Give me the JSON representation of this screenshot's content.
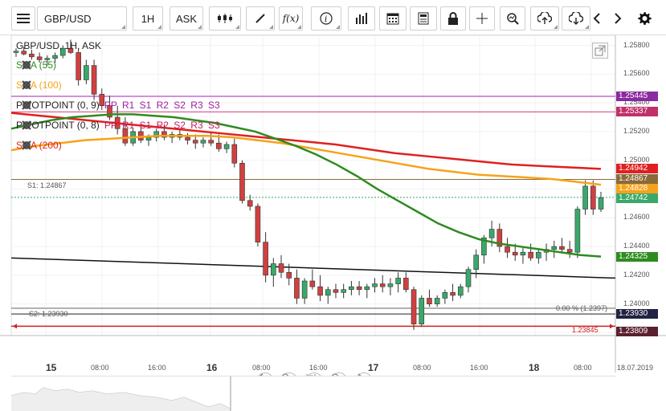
{
  "toolbar": {
    "menu_icon": "hamburger-menu-icon",
    "symbol": "GBP/USD",
    "timeframe": "1H",
    "price_type": "ASK",
    "buttons": [
      "candles-icon",
      "draw-line-icon",
      "fx-icon",
      "info-icon",
      "volume-bars-icon",
      "calendar-icon",
      "news-icon",
      "lock-icon",
      "crosshair-icon",
      "zoom-icon",
      "upload-icon",
      "download-icon",
      "prev-arrow-icon",
      "next-arrow-icon",
      "gear-icon"
    ],
    "fx_label": "f(x)"
  },
  "chart_header": {
    "title": "GBP/USD, 1H, ASK"
  },
  "legend": [
    {
      "label": "SMA (55)",
      "color": "#2e8b20"
    },
    {
      "label": "SMA (100)",
      "color": "#f5a31a"
    },
    {
      "label": "PIVOTPOINT (0, 9)",
      "color": "#222222",
      "levels": "PP R1 S1 R2 S2 R3 S3",
      "level_color": "#a020a0"
    },
    {
      "label": "PIVOTPOINT (0, 8)",
      "color": "#222222",
      "levels": "PP R1 S1 R2 S2 R3 S3",
      "level_color": "#c02060"
    },
    {
      "label": "SMA (200)",
      "color": "#e02020"
    }
  ],
  "price_axis": {
    "ticks": [
      "1.25800",
      "1.25600",
      "1.25400",
      "1.25200",
      "1.25000",
      "1.24800",
      "1.24600",
      "1.24400",
      "1.24200",
      "1.24000",
      "1.23800"
    ],
    "top_tick": "1.25800"
  },
  "price_tags": [
    {
      "value": "1.25445",
      "color": "#8a2aa0"
    },
    {
      "value": "1.25337",
      "color": "#c0306a"
    },
    {
      "value": "1.24942",
      "color": "#e02020"
    },
    {
      "value": "1.24867",
      "color": "#8a6a3a"
    },
    {
      "value": "1.24828",
      "color": "#f5a31a"
    },
    {
      "value": "1.24742",
      "color": "#3aa86a"
    },
    {
      "value": "1.24325",
      "color": "#2e8b20"
    },
    {
      "value": "1.23930",
      "color": "#222244"
    },
    {
      "value": "1.23809",
      "color": "#5a2030"
    }
  ],
  "annotations": {
    "s1_label": "S1: 1.24867",
    "s2_label": "S2: 1.23930",
    "fib_label": "0.00 % (1.2397)",
    "red_line_label": "1.23845"
  },
  "time_axis": {
    "days": [
      {
        "label": "15"
      },
      {
        "label": "16"
      },
      {
        "label": "17"
      },
      {
        "label": "18"
      }
    ],
    "times": [
      "08:00",
      "16:00",
      "08:00",
      "16:00",
      "08:00",
      "16:00",
      "08:00"
    ],
    "date_label": "18.07.2019"
  },
  "nav_buttons": [
    "scroll-left-icon",
    "zoom-out-icon",
    "fit-icon",
    "zoom-in-icon",
    "scroll-right-icon"
  ],
  "colors": {
    "bull": "#3aa86a",
    "bear": "#d04040",
    "sma55": "#2e8b20",
    "sma100": "#f5a31a",
    "sma200": "#e02020"
  },
  "chart_data": {
    "type": "candlestick",
    "symbol": "GBP/USD",
    "timeframe": "1H",
    "ylim": [
      1.2378,
      1.2587
    ],
    "candles": [
      [
        1.2575,
        1.2578,
        1.2572,
        1.2576
      ],
      [
        1.2576,
        1.2579,
        1.2573,
        1.2574
      ],
      [
        1.2574,
        1.2577,
        1.257,
        1.2572
      ],
      [
        1.2572,
        1.2575,
        1.2568,
        1.257
      ],
      [
        1.257,
        1.2573,
        1.2566,
        1.2571
      ],
      [
        1.2571,
        1.2575,
        1.2568,
        1.2573
      ],
      [
        1.2573,
        1.258,
        1.2571,
        1.2578
      ],
      [
        1.2578,
        1.2584,
        1.2574,
        1.2575
      ],
      [
        1.2575,
        1.2578,
        1.2552,
        1.2556
      ],
      [
        1.2556,
        1.257,
        1.2553,
        1.2566
      ],
      [
        1.2566,
        1.257,
        1.2542,
        1.2546
      ],
      [
        1.2546,
        1.255,
        1.2535,
        1.2538
      ],
      [
        1.2538,
        1.2545,
        1.2528,
        1.253
      ],
      [
        1.253,
        1.2538,
        1.2518,
        1.2522
      ],
      [
        1.2522,
        1.253,
        1.251,
        1.2512
      ],
      [
        1.2512,
        1.2522,
        1.251,
        1.252
      ],
      [
        1.252,
        1.2523,
        1.2512,
        1.2514
      ],
      [
        1.2514,
        1.2518,
        1.251,
        1.2516
      ],
      [
        1.2516,
        1.2522,
        1.2513,
        1.252
      ],
      [
        1.252,
        1.2525,
        1.2514,
        1.2516
      ],
      [
        1.2516,
        1.252,
        1.2512,
        1.2518
      ],
      [
        1.2518,
        1.2522,
        1.2514,
        1.2516
      ],
      [
        1.2516,
        1.2519,
        1.2511,
        1.2514
      ],
      [
        1.2514,
        1.2518,
        1.2508,
        1.2512
      ],
      [
        1.2512,
        1.2516,
        1.2509,
        1.2514
      ],
      [
        1.2514,
        1.252,
        1.251,
        1.2512
      ],
      [
        1.2512,
        1.2518,
        1.2506,
        1.2508
      ],
      [
        1.2508,
        1.2513,
        1.2505,
        1.2511
      ],
      [
        1.2511,
        1.2515,
        1.2495,
        1.2498
      ],
      [
        1.2498,
        1.25,
        1.247,
        1.2472
      ],
      [
        1.2472,
        1.2476,
        1.2465,
        1.2468
      ],
      [
        1.2468,
        1.247,
        1.244,
        1.2443
      ],
      [
        1.2443,
        1.245,
        1.2415,
        1.242
      ],
      [
        1.242,
        1.2432,
        1.2412,
        1.2428
      ],
      [
        1.2428,
        1.2434,
        1.2418,
        1.2422
      ],
      [
        1.2422,
        1.2428,
        1.2413,
        1.2418
      ],
      [
        1.2418,
        1.2424,
        1.24,
        1.2404
      ],
      [
        1.2404,
        1.2418,
        1.24,
        1.2416
      ],
      [
        1.2416,
        1.2424,
        1.241,
        1.2412
      ],
      [
        1.2412,
        1.242,
        1.2402,
        1.2406
      ],
      [
        1.2406,
        1.2412,
        1.24,
        1.241
      ],
      [
        1.241,
        1.2414,
        1.2404,
        1.2408
      ],
      [
        1.2408,
        1.2414,
        1.2404,
        1.241
      ],
      [
        1.241,
        1.2416,
        1.2406,
        1.2412
      ],
      [
        1.2412,
        1.2416,
        1.2406,
        1.241
      ],
      [
        1.241,
        1.2414,
        1.2404,
        1.2412
      ],
      [
        1.2412,
        1.2418,
        1.2408,
        1.2414
      ],
      [
        1.2414,
        1.242,
        1.2408,
        1.2412
      ],
      [
        1.2412,
        1.2418,
        1.2406,
        1.2414
      ],
      [
        1.2414,
        1.2422,
        1.2408,
        1.2418
      ],
      [
        1.2418,
        1.2422,
        1.2408,
        1.241
      ],
      [
        1.241,
        1.2412,
        1.2382,
        1.2386
      ],
      [
        1.2386,
        1.2406,
        1.2384,
        1.2404
      ],
      [
        1.2404,
        1.241,
        1.2398,
        1.24
      ],
      [
        1.24,
        1.2406,
        1.2398,
        1.2404
      ],
      [
        1.2404,
        1.241,
        1.24,
        1.2408
      ],
      [
        1.2408,
        1.2414,
        1.2402,
        1.2406
      ],
      [
        1.2406,
        1.2414,
        1.2404,
        1.2412
      ],
      [
        1.2412,
        1.2426,
        1.2408,
        1.2424
      ],
      [
        1.2424,
        1.2438,
        1.2418,
        1.2434
      ],
      [
        1.2434,
        1.2448,
        1.2428,
        1.2446
      ],
      [
        1.2446,
        1.2458,
        1.244,
        1.2452
      ],
      [
        1.2452,
        1.2456,
        1.2436,
        1.244
      ],
      [
        1.244,
        1.2446,
        1.2432,
        1.2436
      ],
      [
        1.2436,
        1.2442,
        1.243,
        1.2434
      ],
      [
        1.2434,
        1.244,
        1.2428,
        1.2436
      ],
      [
        1.2436,
        1.2442,
        1.243,
        1.2432
      ],
      [
        1.2432,
        1.2438,
        1.2428,
        1.2436
      ],
      [
        1.2436,
        1.2442,
        1.243,
        1.2438
      ],
      [
        1.2438,
        1.2444,
        1.2432,
        1.244
      ],
      [
        1.244,
        1.2446,
        1.2436,
        1.2438
      ],
      [
        1.2438,
        1.2444,
        1.2432,
        1.2436
      ],
      [
        1.2436,
        1.2468,
        1.2432,
        1.2466
      ],
      [
        1.2466,
        1.2486,
        1.2462,
        1.2482
      ],
      [
        1.2482,
        1.2486,
        1.2462,
        1.2466
      ],
      [
        1.2466,
        1.2478,
        1.2464,
        1.2474
      ]
    ],
    "sma55": [
      1.2522,
      1.2525,
      1.2528,
      1.253,
      1.2531,
      1.2532,
      1.2532,
      1.2531,
      1.253,
      1.2528,
      1.2526,
      1.2523,
      1.252,
      1.2515,
      1.251,
      1.2504,
      1.2497,
      1.2489,
      1.248,
      1.2472,
      1.2464,
      1.2456,
      1.245,
      1.2445,
      1.2442,
      1.244,
      1.2438,
      1.2436,
      1.2434,
      1.2433
    ],
    "sma100": [
      1.2507,
      1.251,
      1.2512,
      1.2514,
      1.2515,
      1.2516,
      1.2517,
      1.2517,
      1.2517,
      1.2516,
      1.2514,
      1.2512,
      1.2509,
      1.2506,
      1.2503,
      1.25,
      1.2497,
      1.2494,
      1.2492,
      1.249,
      1.2489,
      1.2488,
      1.2487,
      1.2485,
      1.2483
    ],
    "sma200": [
      1.2533,
      1.2531,
      1.2529,
      1.2527,
      1.2525,
      1.2523,
      1.2521,
      1.2519,
      1.2517,
      1.2515,
      1.2513,
      1.2511,
      1.2508,
      1.2505,
      1.2503,
      1.2501,
      1.2499,
      1.2497,
      1.2496,
      1.2495,
      1.2494
    ],
    "levels": {
      "pivot_0_9": 1.25445,
      "pivot_0_8": 1.25337,
      "s1": 1.24867,
      "s2": 1.2393,
      "fib_0": 1.2397,
      "red_horizontal": 1.23845
    },
    "trendline": {
      "from": 1.2432,
      "to": 1.2418
    }
  }
}
